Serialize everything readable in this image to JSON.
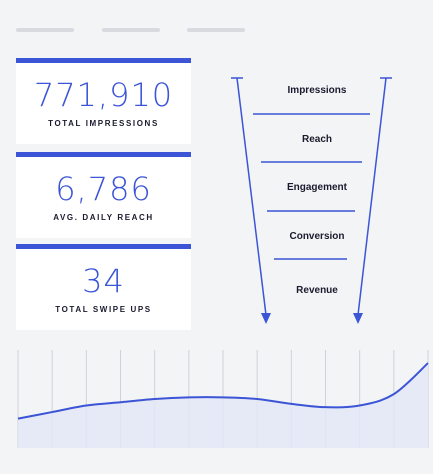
{
  "colors": {
    "accent": "#3b55d6",
    "background": "#f3f4f6",
    "chart_fill": "#e3e6f6",
    "grid": "#cfd2d8"
  },
  "stats": [
    {
      "value": "771,910",
      "label": "TOTAL IMPRESSIONS"
    },
    {
      "value": "6,786",
      "label": "AVG. DAILY REACH"
    },
    {
      "value": "34",
      "label": "TOTAL SWIPE UPS"
    }
  ],
  "funnel": {
    "stages": [
      "Impressions",
      "Reach",
      "Engagement",
      "Conversion",
      "Revenue"
    ]
  },
  "trend": {
    "values": [
      18,
      22,
      26,
      28,
      30,
      31,
      31,
      30,
      27,
      25,
      26,
      33,
      52
    ]
  }
}
